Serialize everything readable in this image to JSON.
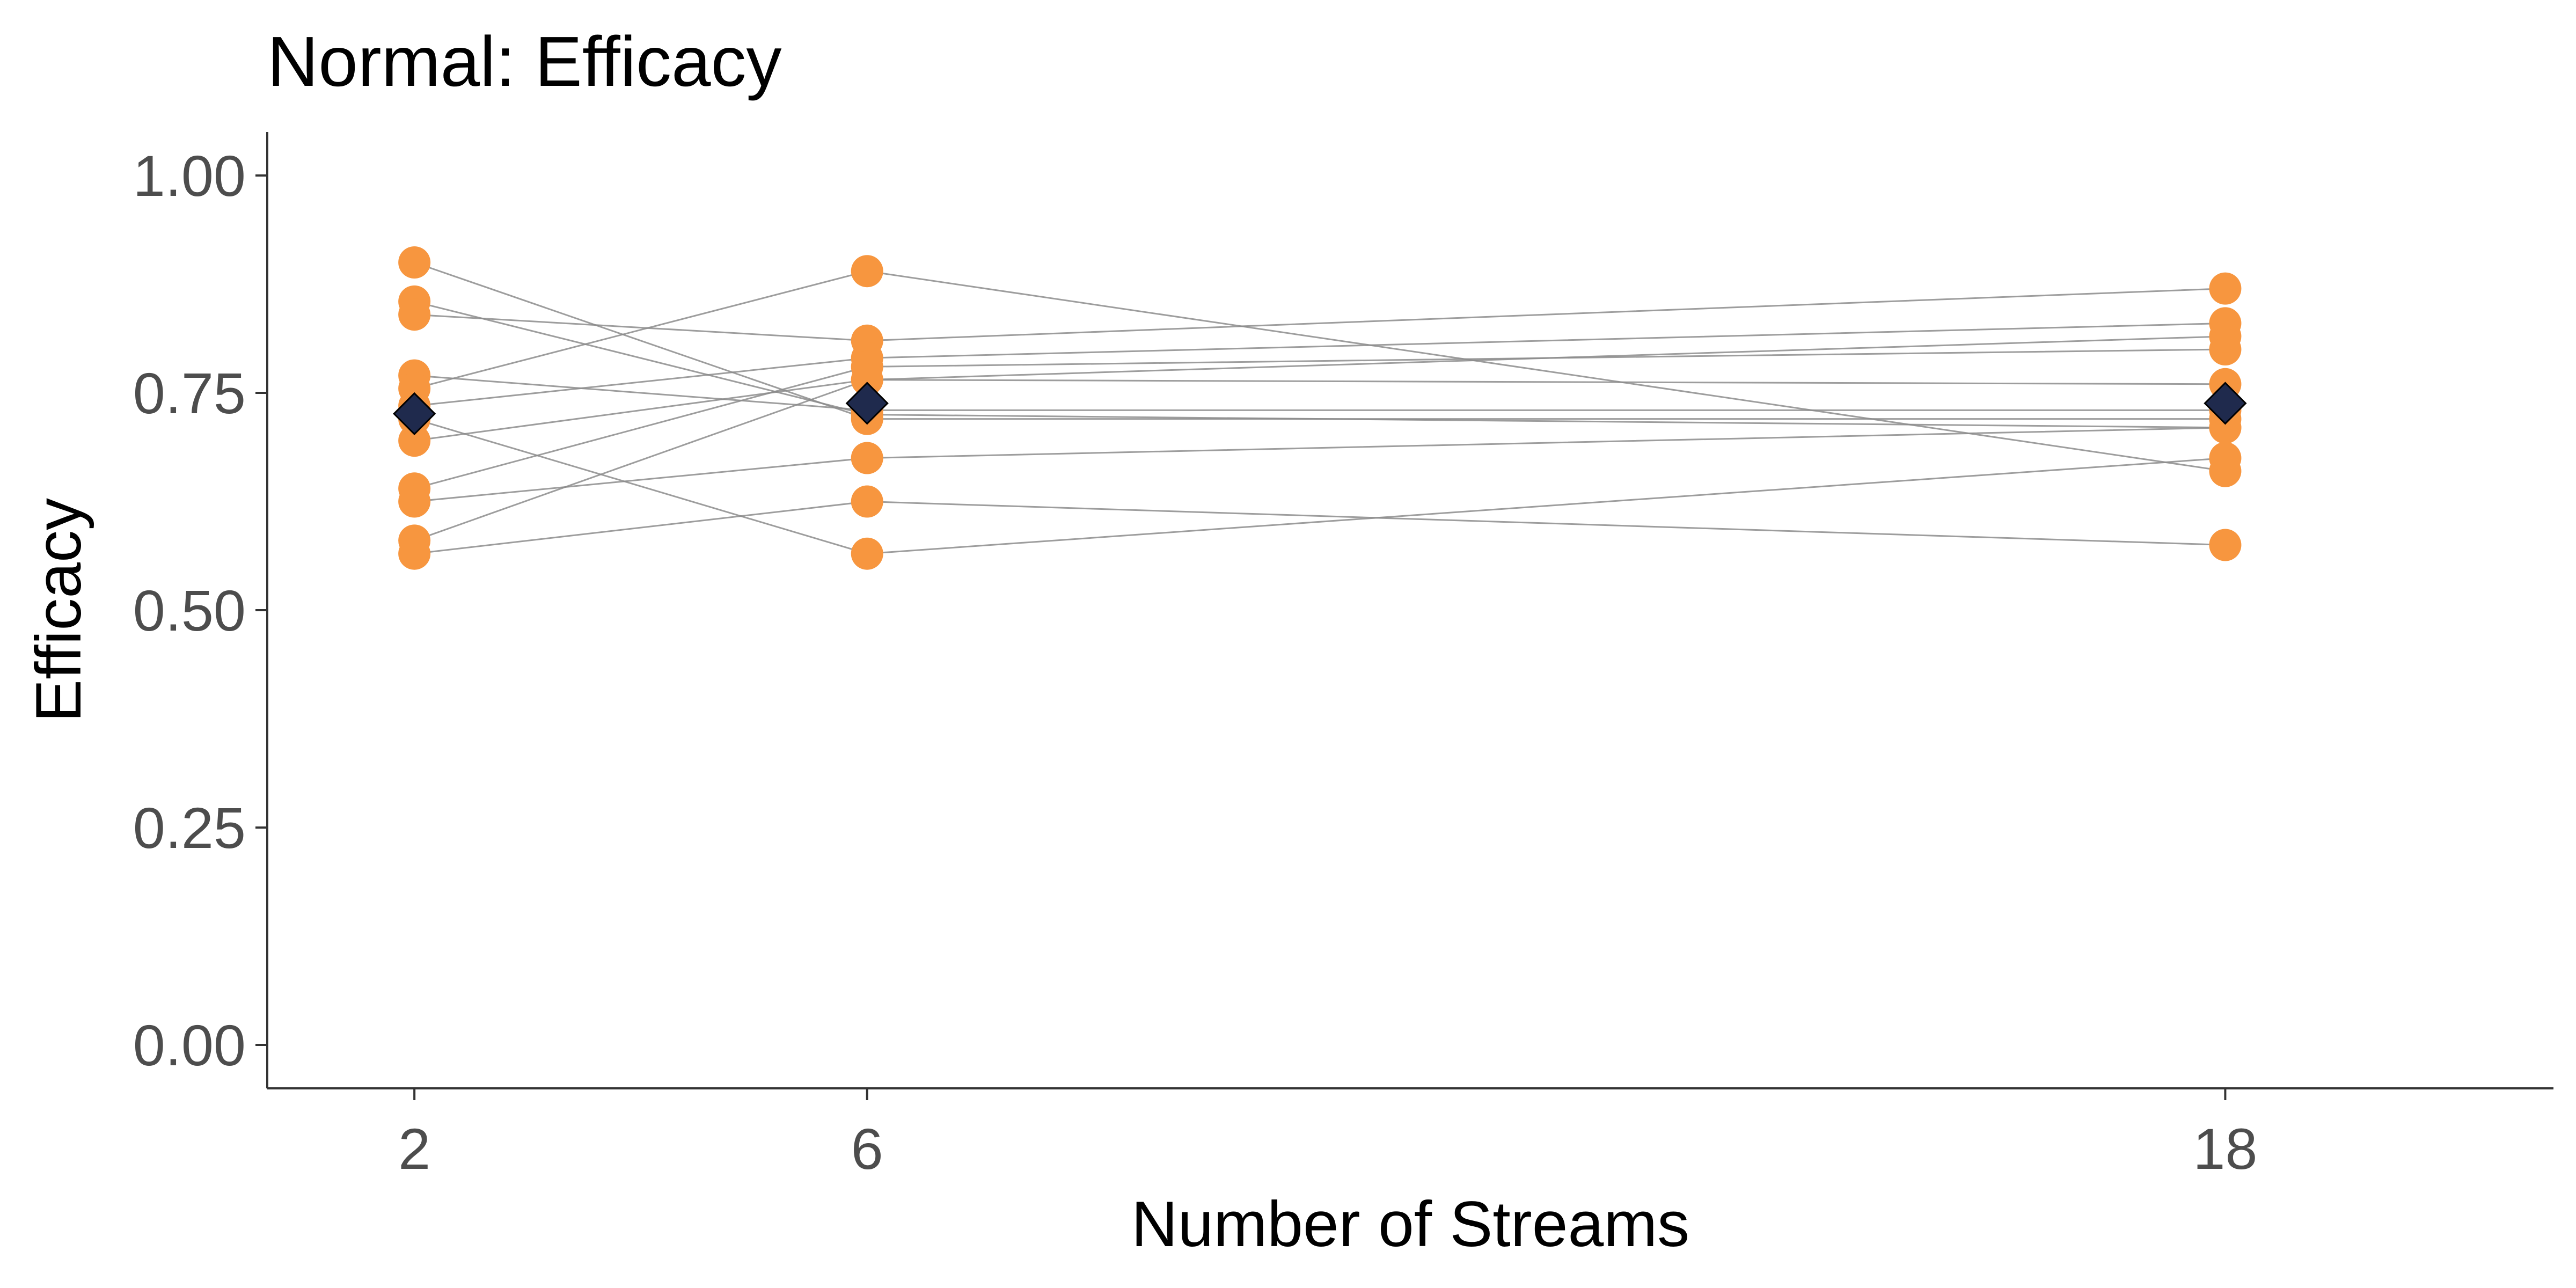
{
  "chart_data": {
    "type": "scatter",
    "title": "Normal: Efficacy",
    "xlabel": "Number of Streams",
    "ylabel": "Efficacy",
    "x": [
      2,
      6,
      18
    ],
    "xlim": [
      0.7,
      20.9
    ],
    "ylim": [
      -0.05,
      1.05
    ],
    "yticks": [
      0.0,
      0.25,
      0.5,
      0.75,
      1.0
    ],
    "ytick_labels": [
      "0.00",
      "0.25",
      "0.50",
      "0.75",
      "1.00"
    ],
    "xtick_labels": [
      "2",
      "6",
      "18"
    ],
    "grid": false,
    "legend": "none",
    "point_color": "#f7963f",
    "line_color": "#8c8c8c",
    "mean_color": "#1f2a4d",
    "series": [
      {
        "values": [
          0.9,
          0.72,
          0.72
        ]
      },
      {
        "values": [
          0.855,
          0.725,
          0.71
        ]
      },
      {
        "values": [
          0.84,
          0.81,
          0.87
        ]
      },
      {
        "values": [
          0.77,
          0.73,
          0.73
        ]
      },
      {
        "values": [
          0.755,
          0.89,
          0.66
        ]
      },
      {
        "values": [
          0.735,
          0.79,
          0.83
        ]
      },
      {
        "values": [
          0.695,
          0.765,
          0.76
        ]
      },
      {
        "values": [
          0.64,
          0.78,
          0.8
        ]
      },
      {
        "values": [
          0.625,
          0.675,
          0.71
        ]
      },
      {
        "values": [
          0.58,
          0.765,
          0.815
        ]
      },
      {
        "values": [
          0.565,
          0.625,
          0.575
        ]
      },
      {
        "values": [
          0.72,
          0.565,
          0.675
        ]
      }
    ],
    "means": {
      "values": [
        0.726,
        0.738,
        0.738
      ],
      "error": [
        0.015,
        0.015,
        0.015
      ]
    }
  }
}
